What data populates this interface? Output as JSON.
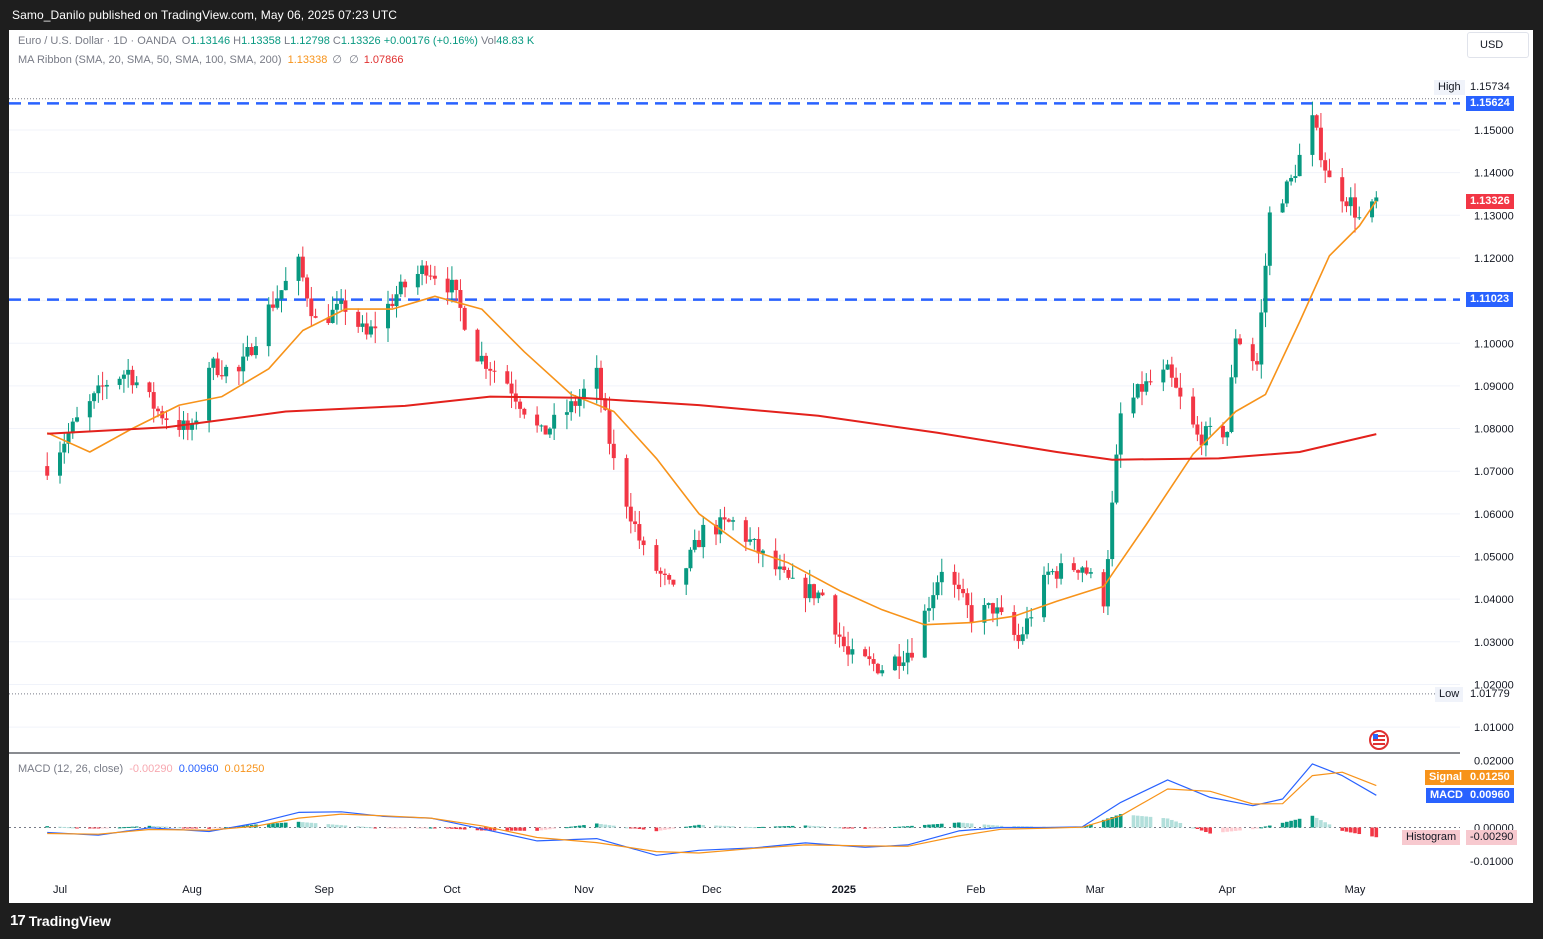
{
  "header": {
    "published": "Samo_Danilo published on TradingView.com, May 06, 2025 07:23 UTC"
  },
  "footer": {
    "brand": "TradingView"
  },
  "legend": {
    "symbol": "Euro / U.S. Dollar · 1D · OANDA",
    "open_label": "O",
    "open": "1.13146",
    "high_label": "H",
    "high": "1.13358",
    "low_label": "L",
    "low": "1.12798",
    "close_label": "C",
    "close": "1.13326",
    "change": "+0.00176 (+0.16%)",
    "vol_label": "Vol",
    "vol": "48.83 K",
    "ma_name": "MA Ribbon (SMA, 20, SMA, 50, SMA, 100, SMA, 200)",
    "ma_val1": "1.13338",
    "ma_empty1": "∅",
    "ma_empty2": "∅",
    "ma_val2": "1.07866"
  },
  "macd_legend": {
    "name": "MACD (12, 26, close)",
    "hist": "-0.00290",
    "macd": "0.00960",
    "signal": "0.01250"
  },
  "currency": "USD",
  "price_tags": {
    "high_label": "High",
    "high_value": "1.15734",
    "upper_line": "1.15624",
    "last": "1.13326",
    "lower_line": "1.11023",
    "low_label": "Low",
    "low_value": "1.01779",
    "signal_label": "Signal",
    "signal_value": "0.01250",
    "macd_label": "MACD",
    "macd_value": "0.00960",
    "hist_label": "Histogram",
    "hist_value": "-0.00290"
  },
  "colors": {
    "up": "#089981",
    "down": "#f23645",
    "ma20": "#f7931a",
    "ma200": "#e3211c",
    "hline": "#2962ff",
    "macd": "#2962ff",
    "signal": "#f7931a"
  },
  "chart_data": {
    "type": "candlestick",
    "title": "Euro / U.S. Dollar · 1D · OANDA",
    "ylim": [
      1.005,
      1.163
    ],
    "price_ticks": [
      "1.15000",
      "1.14000",
      "1.13000",
      "1.12000",
      "1.11000",
      "1.10000",
      "1.09000",
      "1.08000",
      "1.07000",
      "1.06000",
      "1.05000",
      "1.04000",
      "1.03000",
      "1.02000",
      "1.01000"
    ],
    "x_ticks": [
      "Jul",
      "Aug",
      "Sep",
      "Oct",
      "Nov",
      "Dec",
      "2025",
      "Feb",
      "Mar",
      "Apr",
      "May"
    ],
    "horizontal_lines": [
      1.15624,
      1.11023
    ],
    "range_markers": {
      "high": 1.15734,
      "low": 1.01779
    },
    "close_path": [
      [
        "Jun 28",
        1.0712
      ],
      [
        "Jul 5",
        1.0817
      ],
      [
        "Jul 12",
        1.0908
      ],
      [
        "Jul 17",
        1.0935
      ],
      [
        "Jul 24",
        1.084
      ],
      [
        "Aug 1",
        1.079
      ],
      [
        "Aug 5",
        1.095
      ],
      [
        "Aug 12",
        1.093
      ],
      [
        "Aug 19",
        1.108
      ],
      [
        "Aug 26",
        1.1185
      ],
      [
        "Aug 30",
        1.105
      ],
      [
        "Sep 6",
        1.1085
      ],
      [
        "Sep 11",
        1.1015
      ],
      [
        "Sep 18",
        1.1115
      ],
      [
        "Sep 25",
        1.118
      ],
      [
        "Oct 1",
        1.113
      ],
      [
        "Oct 7",
        1.0975
      ],
      [
        "Oct 14",
        1.091
      ],
      [
        "Oct 22",
        1.0785
      ],
      [
        "Oct 30",
        1.086
      ],
      [
        "Nov 4",
        1.0925
      ],
      [
        "Nov 8",
        1.072
      ],
      [
        "Nov 15",
        1.051
      ],
      [
        "Nov 22",
        1.0415
      ],
      [
        "Nov 29",
        1.056
      ],
      [
        "Dec 6",
        1.058
      ],
      [
        "Dec 13",
        1.05
      ],
      [
        "Dec 20",
        1.043
      ],
      [
        "Dec 27",
        1.041
      ],
      [
        "Jan 2",
        1.0265
      ],
      [
        "Jan 10",
        1.024
      ],
      [
        "Jan 17",
        1.0285
      ],
      [
        "Jan 24",
        1.0475
      ],
      [
        "Jan 31",
        1.036
      ],
      [
        "Feb 5",
        1.038
      ],
      [
        "Feb 11",
        1.03
      ],
      [
        "Feb 18",
        1.046
      ],
      [
        "Feb 26",
        1.048
      ],
      [
        "Mar 3",
        1.04
      ],
      [
        "Mar 7",
        1.083
      ],
      [
        "Mar 12",
        1.0895
      ],
      [
        "Mar 18",
        1.093
      ],
      [
        "Mar 25",
        1.078
      ],
      [
        "Apr 1",
        1.0795
      ],
      [
        "Apr 3",
        1.102
      ],
      [
        "Apr 8",
        1.095
      ],
      [
        "Apr 11",
        1.13
      ],
      [
        "Apr 16",
        1.138
      ],
      [
        "Apr 21",
        1.152
      ],
      [
        "Apr 25",
        1.138
      ],
      [
        "Apr 30",
        1.133
      ],
      [
        "May 2",
        1.129
      ],
      [
        "May 5",
        1.1315
      ],
      [
        "May 6",
        1.1333
      ]
    ],
    "series": [
      {
        "name": "SMA 20",
        "color": "#f7931a",
        "values": [
          [
            "Jun 28",
            1.079
          ],
          [
            "Jul 8",
            1.0745
          ],
          [
            "Jul 18",
            1.08
          ],
          [
            "Jul 29",
            1.0855
          ],
          [
            "Aug 8",
            1.0875
          ],
          [
            "Aug 19",
            1.094
          ],
          [
            "Aug 27",
            1.103
          ],
          [
            "Sep 6",
            1.108
          ],
          [
            "Sep 17",
            1.108
          ],
          [
            "Sep 27",
            1.111
          ],
          [
            "Oct 8",
            1.108
          ],
          [
            "Oct 18",
            1.098
          ],
          [
            "Oct 29",
            1.088
          ],
          [
            "Nov 8",
            1.084
          ],
          [
            "Nov 18",
            1.073
          ],
          [
            "Nov 28",
            1.06
          ],
          [
            "Dec 9",
            1.052
          ],
          [
            "Dec 19",
            1.0485
          ],
          [
            "Dec 31",
            1.042
          ],
          [
            "Jan 10",
            1.0375
          ],
          [
            "Jan 20",
            1.034
          ],
          [
            "Jan 31",
            1.0345
          ],
          [
            "Feb 10",
            1.036
          ],
          [
            "Feb 20",
            1.0395
          ],
          [
            "Mar 3",
            1.043
          ],
          [
            "Mar 13",
            1.0575
          ],
          [
            "Mar 24",
            1.074
          ],
          [
            "Apr 3",
            1.084
          ],
          [
            "Apr 10",
            1.088
          ],
          [
            "Apr 18",
            1.105
          ],
          [
            "Apr 25",
            1.1205
          ],
          [
            "May 2",
            1.1275
          ],
          [
            "May 6",
            1.1334
          ]
        ]
      },
      {
        "name": "SMA 200",
        "color": "#e3211c",
        "values": [
          [
            "Jun 28",
            1.0788
          ],
          [
            "Jul 26",
            1.0803
          ],
          [
            "Aug 23",
            1.084
          ],
          [
            "Sep 20",
            1.0853
          ],
          [
            "Oct 10",
            1.0875
          ],
          [
            "Oct 31",
            1.0872
          ],
          [
            "Nov 28",
            1.0855
          ],
          [
            "Dec 26",
            1.083
          ],
          [
            "Jan 23",
            1.079
          ],
          [
            "Feb 20",
            1.0745
          ],
          [
            "Mar 5",
            1.0727
          ],
          [
            "Mar 30",
            1.073
          ],
          [
            "Apr 18",
            1.0745
          ],
          [
            "May 6",
            1.0787
          ]
        ]
      }
    ],
    "macd": {
      "ylim": [
        -0.0125,
        0.021
      ],
      "ticks": [
        "0.02000",
        "0.00000",
        "-0.01000"
      ],
      "macd_line": [
        [
          "Jun 28",
          -0.0015
        ],
        [
          "Jul 10",
          -0.0023
        ],
        [
          "Jul 22",
          -0.0001
        ],
        [
          "Aug 5",
          -0.0012
        ],
        [
          "Aug 16",
          0.0013
        ],
        [
          "Aug 26",
          0.0045
        ],
        [
          "Sep 5",
          0.0047
        ],
        [
          "Sep 15",
          0.0033
        ],
        [
          "Sep 26",
          0.0028
        ],
        [
          "Oct 8",
          -0.0004
        ],
        [
          "Oct 21",
          -0.004
        ],
        [
          "Nov 4",
          -0.0033
        ],
        [
          "Nov 18",
          -0.0083
        ],
        [
          "Nov 28",
          -0.0068
        ],
        [
          "Dec 11",
          -0.0061
        ],
        [
          "Dec 23",
          -0.0046
        ],
        [
          "Jan 6",
          -0.0059
        ],
        [
          "Jan 16",
          -0.0052
        ],
        [
          "Jan 28",
          -0.001
        ],
        [
          "Feb 7",
          0.0
        ],
        [
          "Feb 18",
          0.0
        ],
        [
          "Feb 26",
          0.0002
        ],
        [
          "Mar 7",
          0.0075
        ],
        [
          "Mar 18",
          0.0142
        ],
        [
          "Mar 28",
          0.009
        ],
        [
          "Apr 7",
          0.0065
        ],
        [
          "Apr 14",
          0.0085
        ],
        [
          "Apr 21",
          0.019
        ],
        [
          "Apr 28",
          0.0155
        ],
        [
          "May 6",
          0.0096
        ]
      ],
      "signal_line": [
        [
          "Jun 28",
          -0.0018
        ],
        [
          "Jul 10",
          -0.002
        ],
        [
          "Jul 22",
          -0.0006
        ],
        [
          "Aug 5",
          -0.0008
        ],
        [
          "Aug 16",
          0.0004
        ],
        [
          "Aug 26",
          0.0028
        ],
        [
          "Sep 5",
          0.004
        ],
        [
          "Sep 15",
          0.0035
        ],
        [
          "Sep 26",
          0.0028
        ],
        [
          "Oct 8",
          0.0005
        ],
        [
          "Oct 21",
          -0.003
        ],
        [
          "Nov 4",
          -0.0045
        ],
        [
          "Nov 18",
          -0.0072
        ],
        [
          "Nov 28",
          -0.0076
        ],
        [
          "Dec 11",
          -0.0062
        ],
        [
          "Dec 23",
          -0.0052
        ],
        [
          "Jan 6",
          -0.0055
        ],
        [
          "Jan 16",
          -0.0056
        ],
        [
          "Jan 28",
          -0.0025
        ],
        [
          "Feb 7",
          -0.0005
        ],
        [
          "Feb 18",
          -0.0002
        ],
        [
          "Feb 26",
          0.0001
        ],
        [
          "Mar 7",
          0.0035
        ],
        [
          "Mar 18",
          0.0115
        ],
        [
          "Mar 28",
          0.0108
        ],
        [
          "Apr 7",
          0.007
        ],
        [
          "Apr 14",
          0.0071
        ],
        [
          "Apr 21",
          0.0155
        ],
        [
          "Apr 28",
          0.0165
        ],
        [
          "May 6",
          0.0125
        ]
      ],
      "histogram": [
        [
          "Jun 28",
          0.0004
        ],
        [
          "Jul 10",
          -0.0003
        ],
        [
          "Jul 22",
          0.0005
        ],
        [
          "Aug 5",
          -0.0004
        ],
        [
          "Aug 16",
          0.0009
        ],
        [
          "Aug 26",
          0.0017
        ],
        [
          "Sep 5",
          0.0007
        ],
        [
          "Sep 15",
          -0.0002
        ],
        [
          "Sep 26",
          0.0
        ],
        [
          "Oct 8",
          -0.0009
        ],
        [
          "Oct 21",
          -0.001
        ],
        [
          "Nov 4",
          0.0012
        ],
        [
          "Nov 18",
          -0.0011
        ],
        [
          "Nov 28",
          0.0008
        ],
        [
          "Dec 11",
          0.0001
        ],
        [
          "Dec 23",
          0.0006
        ],
        [
          "Jan 6",
          -0.0004
        ],
        [
          "Jan 16",
          0.0004
        ],
        [
          "Jan 28",
          0.0015
        ],
        [
          "Feb 7",
          0.0005
        ],
        [
          "Feb 18",
          0.0002
        ],
        [
          "Feb 26",
          0.0001
        ],
        [
          "Mar 7",
          0.004
        ],
        [
          "Mar 18",
          0.0027
        ],
        [
          "Mar 28",
          -0.0018
        ],
        [
          "Apr 7",
          -0.0005
        ],
        [
          "Apr 14",
          0.0014
        ],
        [
          "Apr 21",
          0.0035
        ],
        [
          "Apr 28",
          -0.001
        ],
        [
          "May 6",
          -0.0029
        ]
      ]
    }
  }
}
